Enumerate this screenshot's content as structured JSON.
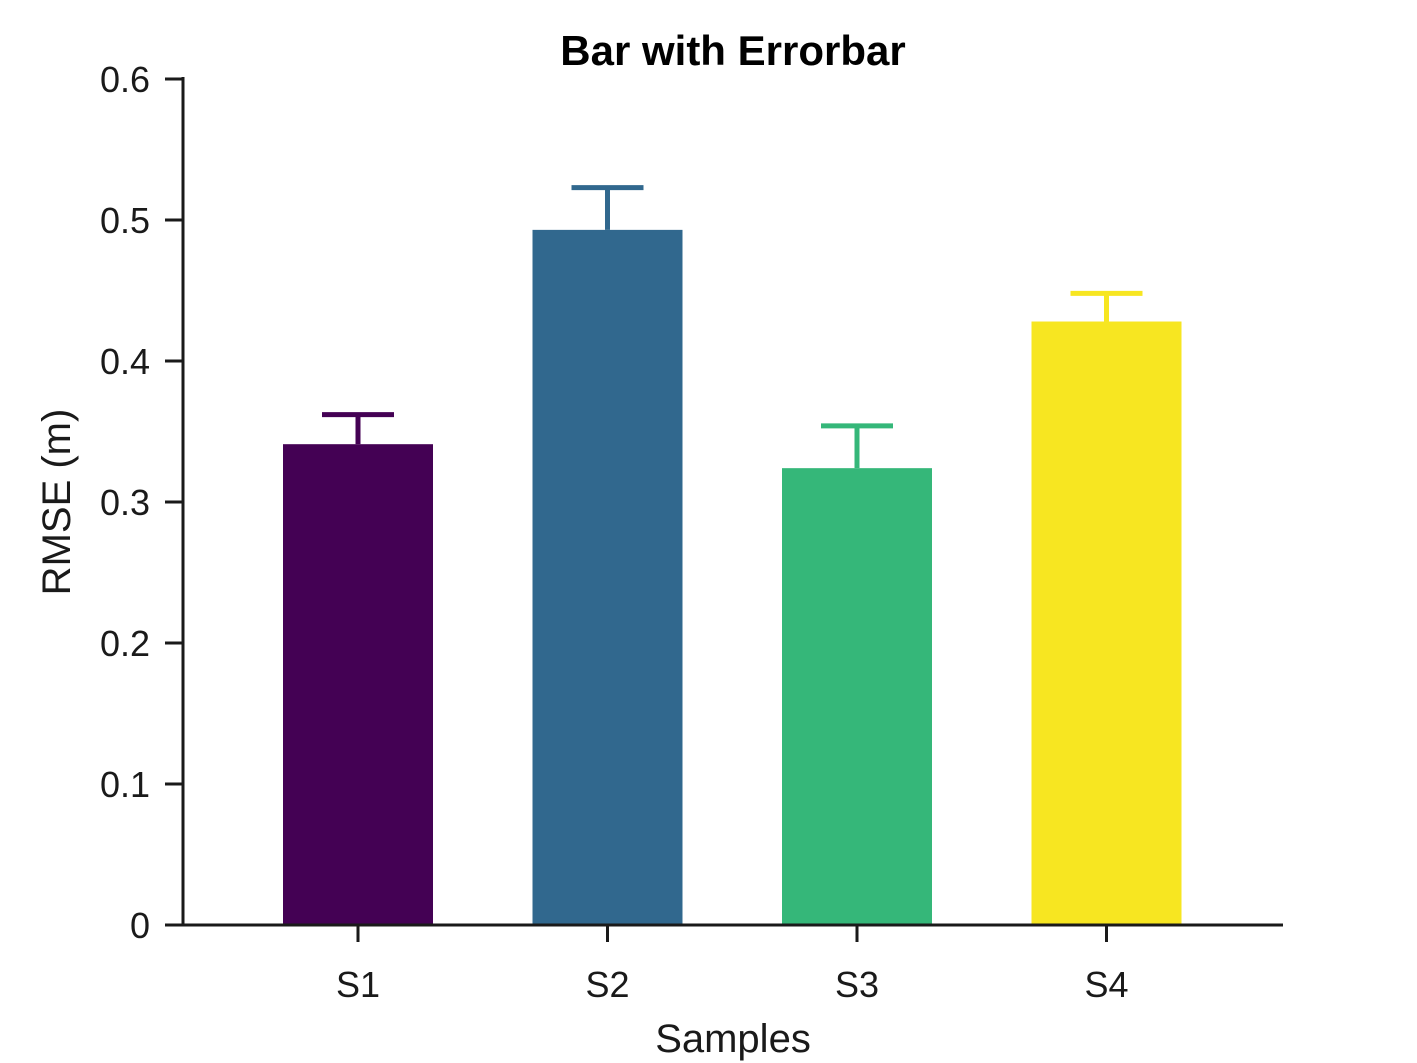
{
  "chart_data": {
    "type": "bar",
    "title": "Bar with Errorbar",
    "xlabel": "Samples",
    "ylabel": "RMSE (m)",
    "categories": [
      "S1",
      "S2",
      "S3",
      "S4"
    ],
    "values": [
      0.341,
      0.493,
      0.324,
      0.428
    ],
    "errors": [
      0.021,
      0.03,
      0.03,
      0.02
    ],
    "colors": [
      "#440154",
      "#31688e",
      "#35b779",
      "#f7e621"
    ],
    "ylim": [
      0,
      0.6
    ],
    "yticks": [
      0,
      0.1,
      0.2,
      0.3,
      0.4,
      0.5,
      0.6
    ],
    "ytick_labels": [
      "0",
      "0.1",
      "0.2",
      "0.3",
      "0.4",
      "0.5",
      "0.6"
    ],
    "grid": false,
    "error_bar_direction": "upper"
  }
}
